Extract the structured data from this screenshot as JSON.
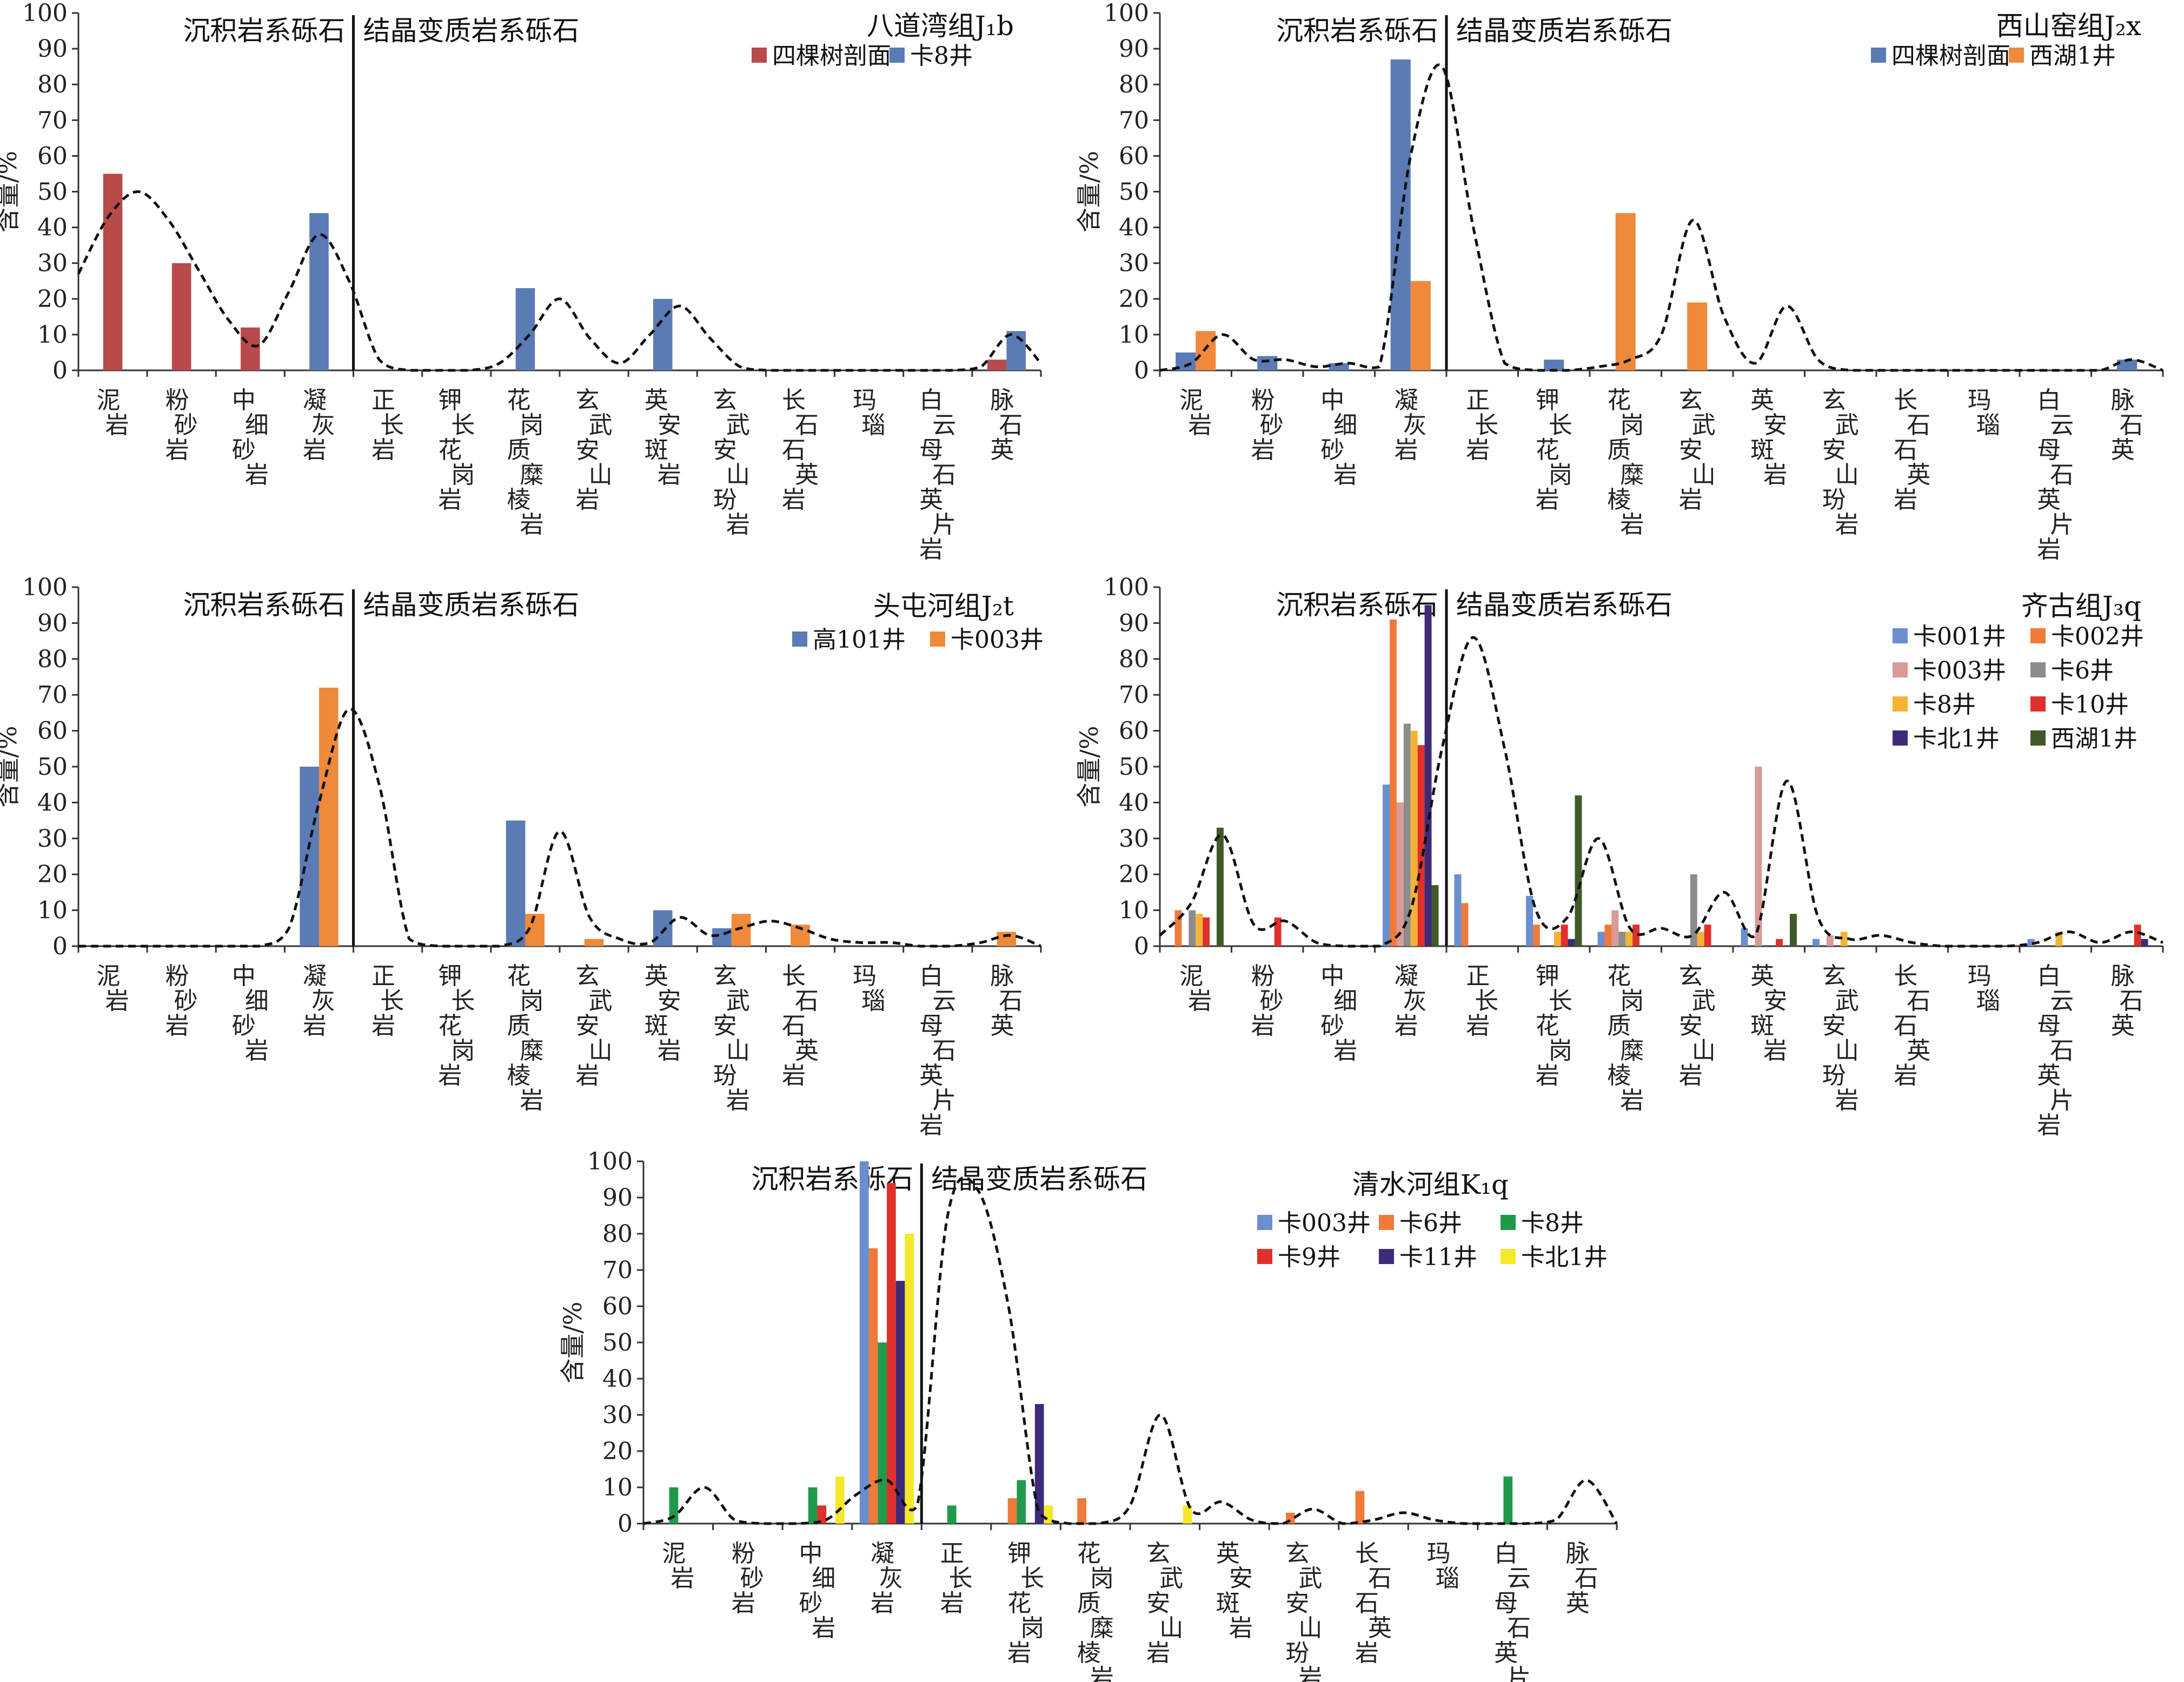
{
  "categories": [
    "泥岩",
    "粉砂岩",
    "中细砂岩",
    "凝灰岩",
    "正长岩",
    "钾长花岗岩",
    "花岗质糜棱岩",
    "玄武安山岩",
    "英安斑岩",
    "玄武安山玢岩",
    "长石石英岩",
    "玛瑙",
    "白云母石英片岩",
    "脉石英"
  ],
  "charts": [
    {
      "id": "badaowan",
      "title": "八道湾组J₁b",
      "ylabel": "含量/%",
      "region_left": "沉积岩系砾石",
      "region_right": "结晶变质岩系砾石",
      "yticks": [
        "0",
        "10",
        "20",
        "30",
        "40",
        "50",
        "60",
        "70",
        "80",
        "90",
        "100"
      ],
      "legend_cols": 2,
      "series": [
        {
          "name": "四棵树剖面",
          "color": "#b94a4c",
          "values": [
            55,
            30,
            12,
            0,
            0,
            0,
            0,
            0,
            0,
            0,
            0,
            0,
            0,
            3
          ]
        },
        {
          "name": "卡8井",
          "color": "#5a7bb5",
          "values": [
            0,
            0,
            0,
            44,
            0,
            0,
            23,
            0,
            20,
            0,
            0,
            0,
            0,
            11
          ]
        }
      ],
      "trend": [
        27,
        43,
        50,
        42,
        28,
        14,
        7,
        22,
        38,
        25,
        3,
        0,
        0,
        0,
        2,
        10,
        20,
        9,
        2,
        10,
        18,
        9,
        1,
        0,
        0,
        0,
        0,
        0,
        0,
        0,
        1,
        10,
        2
      ]
    },
    {
      "id": "xishanyao",
      "title": "西山窑组J₂x",
      "ylabel": "含量/%",
      "region_left": "沉积岩系砾石",
      "region_right": "结晶变质岩系砾石",
      "yticks": [
        "0",
        "10",
        "20",
        "30",
        "40",
        "50",
        "60",
        "70",
        "80",
        "90",
        "100"
      ],
      "legend_cols": 2,
      "series": [
        {
          "name": "四棵树剖面",
          "color": "#5a7bb5",
          "values": [
            5,
            4,
            2,
            87,
            0,
            3,
            0,
            0,
            0,
            0,
            0,
            0,
            0,
            3
          ]
        },
        {
          "name": "西湖1井",
          "color": "#f08a3a",
          "values": [
            11,
            0,
            0,
            25,
            0,
            0,
            44,
            19,
            0,
            0,
            0,
            0,
            0,
            0
          ]
        }
      ],
      "trend": [
        0,
        2,
        10,
        3,
        3,
        1,
        2,
        1,
        60,
        85,
        40,
        2,
        0,
        0,
        1,
        3,
        10,
        42,
        15,
        2,
        18,
        3,
        0,
        0,
        0,
        0,
        0,
        0,
        0,
        0,
        0,
        3,
        0
      ]
    },
    {
      "id": "toutunhe",
      "title": "头屯河组J₂t",
      "ylabel": "含量/%",
      "region_left": "沉积岩系砾石",
      "region_right": "结晶变质岩系砾石",
      "yticks": [
        "0",
        "10",
        "20",
        "30",
        "40",
        "50",
        "60",
        "70",
        "80",
        "90",
        "100"
      ],
      "legend_cols": 2,
      "series": [
        {
          "name": "高101井",
          "color": "#5a7bb5",
          "values": [
            0,
            0,
            0,
            50,
            0,
            0,
            35,
            0,
            10,
            5,
            0,
            0,
            0,
            0
          ]
        },
        {
          "name": "卡003井",
          "color": "#f08a3a",
          "values": [
            0,
            0,
            0,
            72,
            0,
            0,
            9,
            2,
            0,
            9,
            6,
            0,
            0,
            4
          ]
        }
      ],
      "trend": [
        0,
        0,
        0,
        0,
        0,
        0,
        0,
        5,
        40,
        66,
        45,
        2,
        0,
        0,
        0,
        5,
        32,
        8,
        2,
        1,
        8,
        3,
        5,
        7,
        5,
        2,
        1,
        1,
        0,
        0,
        1,
        3,
        0
      ]
    },
    {
      "id": "qigu",
      "title": "齐古组J₃q",
      "ylabel": "含量/%",
      "region_left": "沉积岩系砾石",
      "region_right": "结晶变质岩系砾石",
      "yticks": [
        "0",
        "10",
        "20",
        "30",
        "40",
        "50",
        "60",
        "70",
        "80",
        "90",
        "100"
      ],
      "legend_cols": 2,
      "series": [
        {
          "name": "卡001井",
          "color": "#6a8fcf",
          "values": [
            0,
            0,
            0,
            45,
            20,
            14,
            4,
            0,
            5,
            2,
            0,
            0,
            2,
            0
          ]
        },
        {
          "name": "卡002井",
          "color": "#f07a3a",
          "values": [
            10,
            0,
            0,
            91,
            12,
            6,
            6,
            0,
            0,
            0,
            0,
            0,
            0,
            0
          ]
        },
        {
          "name": "卡003井",
          "color": "#d99a98",
          "values": [
            0,
            0,
            0,
            40,
            0,
            0,
            10,
            0,
            50,
            3,
            0,
            0,
            0,
            0
          ]
        },
        {
          "name": "卡6井",
          "color": "#8c8c8c",
          "values": [
            10,
            0,
            0,
            62,
            0,
            0,
            4,
            20,
            0,
            0,
            0,
            0,
            0,
            0
          ]
        },
        {
          "name": "卡8井",
          "color": "#f5b335",
          "values": [
            9,
            0,
            0,
            60,
            0,
            4,
            4,
            4,
            0,
            4,
            0,
            0,
            4,
            0
          ]
        },
        {
          "name": "卡10井",
          "color": "#e0302b",
          "values": [
            8,
            8,
            0,
            56,
            0,
            6,
            6,
            6,
            2,
            0,
            0,
            0,
            0,
            6
          ]
        },
        {
          "name": "卡北1井",
          "color": "#3e2a78",
          "values": [
            0,
            0,
            0,
            95,
            0,
            2,
            0,
            0,
            0,
            0,
            0,
            0,
            0,
            2
          ]
        },
        {
          "name": "西湖1井",
          "color": "#3f5a28",
          "values": [
            33,
            0,
            0,
            17,
            0,
            42,
            0,
            0,
            9,
            0,
            0,
            0,
            0,
            0
          ]
        }
      ],
      "trend": [
        3,
        12,
        31,
        6,
        7,
        1,
        0,
        0,
        10,
        55,
        86,
        55,
        10,
        8,
        30,
        5,
        5,
        3,
        15,
        3,
        46,
        8,
        2,
        3,
        1,
        0,
        0,
        0,
        1,
        4,
        1,
        4,
        1
      ]
    },
    {
      "id": "qingshuihe",
      "title": "清水河组K₁q",
      "ylabel": "含量/%",
      "region_left": "沉积岩系砾石",
      "region_right": "结晶变质岩系砾石",
      "yticks": [
        "0",
        "10",
        "20",
        "30",
        "40",
        "50",
        "60",
        "70",
        "80",
        "90",
        "100"
      ],
      "legend_cols": 3,
      "series": [
        {
          "name": "卡003井",
          "color": "#6a8fcf",
          "values": [
            0,
            0,
            0,
            100,
            0,
            0,
            0,
            0,
            0,
            0,
            0,
            0,
            0,
            0
          ]
        },
        {
          "name": "卡6井",
          "color": "#f07a3a",
          "values": [
            0,
            0,
            0,
            76,
            0,
            7,
            7,
            0,
            0,
            3,
            9,
            0,
            0,
            0
          ]
        },
        {
          "name": "卡8井",
          "color": "#1e9a4a",
          "values": [
            10,
            0,
            10,
            50,
            5,
            12,
            0,
            0,
            0,
            0,
            0,
            0,
            13,
            0
          ]
        },
        {
          "name": "卡9井",
          "color": "#e0302b",
          "values": [
            0,
            0,
            5,
            94,
            0,
            0,
            0,
            0,
            0,
            0,
            0,
            0,
            0,
            0
          ]
        },
        {
          "name": "卡11井",
          "color": "#3e2a78",
          "values": [
            0,
            0,
            0,
            67,
            0,
            33,
            0,
            0,
            0,
            0,
            0,
            0,
            0,
            0
          ]
        },
        {
          "name": "卡北1井",
          "color": "#f5e82a",
          "values": [
            0,
            0,
            13,
            80,
            0,
            5,
            0,
            5,
            0,
            0,
            0,
            0,
            0,
            0
          ]
        }
      ],
      "trend": [
        0,
        2,
        10,
        1,
        0,
        0,
        1,
        8,
        12,
        5,
        85,
        92,
        60,
        3,
        0,
        0,
        5,
        30,
        4,
        6,
        1,
        0,
        4,
        0,
        1,
        3,
        1,
        0,
        0,
        0,
        1,
        12,
        0
      ]
    }
  ]
}
